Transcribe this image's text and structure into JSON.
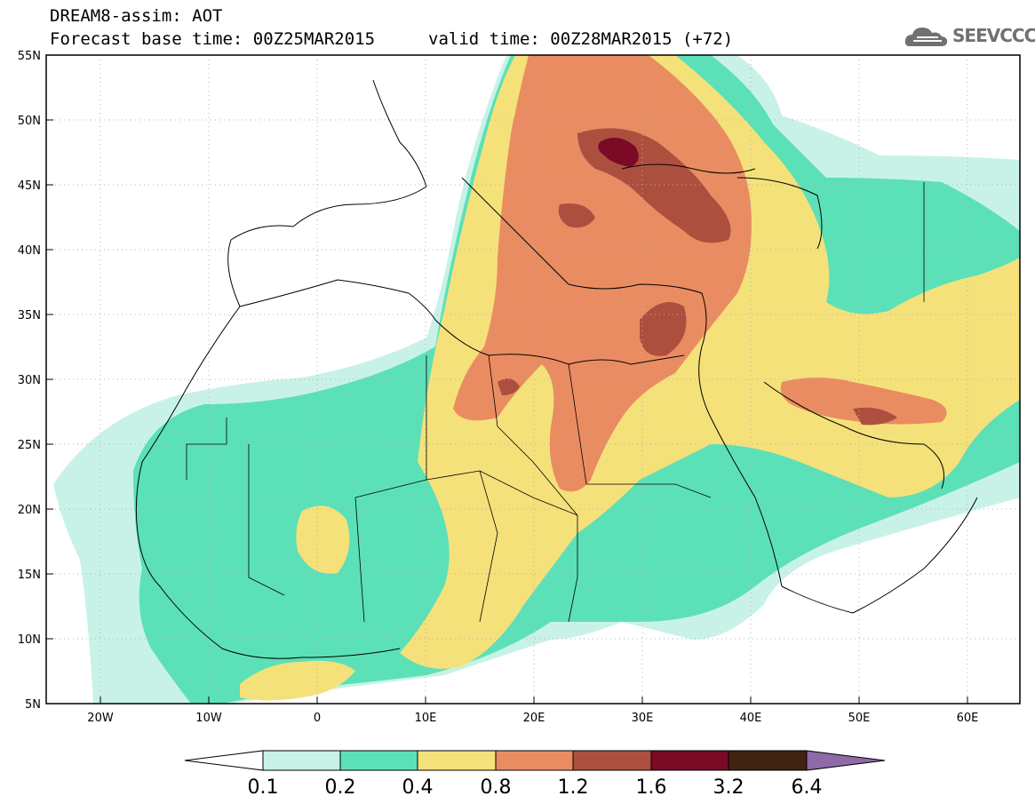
{
  "header": {
    "title": "DREAM8-assim: AOT",
    "base_time": "Forecast base time: 00Z25MAR2015",
    "valid_time": "valid time: 00Z28MAR2015 (+72)",
    "logo_text": "SEEVCCC"
  },
  "lat_labels": [
    "55N",
    "50N",
    "45N",
    "40N",
    "35N",
    "30N",
    "25N",
    "20N",
    "15N",
    "10N",
    "5N"
  ],
  "lon_labels": [
    "20W",
    "10W",
    "0",
    "10E",
    "20E",
    "30E",
    "40E",
    "50E",
    "60E"
  ],
  "legend": {
    "thresholds": [
      "0.1",
      "0.2",
      "0.4",
      "0.8",
      "1.2",
      "1.6",
      "3.2",
      "6.4"
    ],
    "colors": [
      "#ffffff",
      "#c8f2e8",
      "#5ce0b8",
      "#f5e17a",
      "#ea8c62",
      "#ad4f3e",
      "#7a0a26",
      "#3f2212",
      "#8e6aa6"
    ]
  },
  "colors": {
    "c1": "#c8f2e8",
    "c2": "#5ce0b8",
    "c3": "#f5e17a",
    "c4": "#ea8c62",
    "c5": "#ad4f3e",
    "c6": "#7a0a26"
  }
}
